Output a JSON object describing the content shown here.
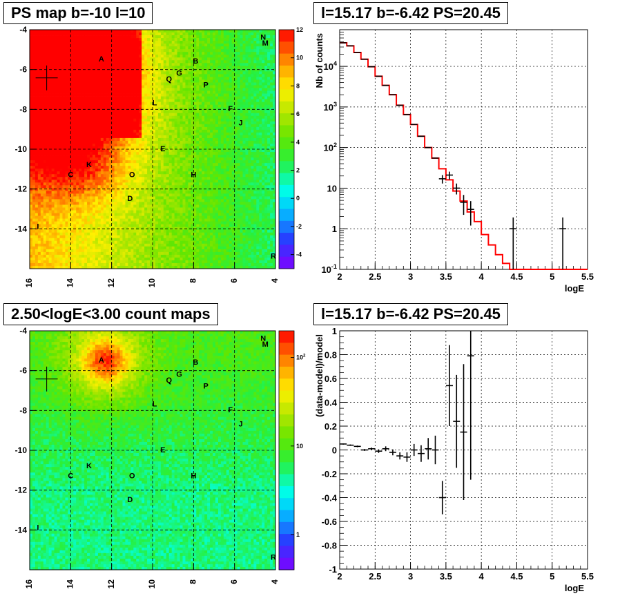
{
  "panels": {
    "tl_title": "PS map b=-10 l=10",
    "tr_title": "l=15.17 b=-6.42 PS=20.45",
    "bl_title": "2.50<logE<3.00 count maps",
    "br_title": "l=15.17 b=-6.42 PS=20.45"
  },
  "chart_data": [
    {
      "type": "heatmap",
      "title": "PS map b=-10 l=10",
      "x_ticks": [
        "16",
        "14",
        "12",
        "10",
        "8",
        "6",
        "4"
      ],
      "y_ticks": [
        "-4",
        "-6",
        "-8",
        "-10",
        "-12",
        "-14"
      ],
      "xlim": [
        16,
        4
      ],
      "ylim": [
        -16,
        -4
      ],
      "colorbar_ticks": [
        "12",
        "10",
        "8",
        "6",
        "4",
        "2",
        "0",
        "-2",
        "-4"
      ],
      "colorbar_range": [
        -5,
        12
      ],
      "sources": [
        {
          "label": "A",
          "l": 12.5,
          "b": -5.6
        },
        {
          "label": "B",
          "l": 7.9,
          "b": -5.7
        },
        {
          "label": "G",
          "l": 8.7,
          "b": -6.3
        },
        {
          "label": "Q",
          "l": 9.2,
          "b": -6.6
        },
        {
          "label": "P",
          "l": 7.4,
          "b": -6.9
        },
        {
          "label": "N",
          "l": 4.6,
          "b": -4.5
        },
        {
          "label": "M",
          "l": 4.5,
          "b": -4.8
        },
        {
          "label": "L",
          "l": 9.9,
          "b": -7.8
        },
        {
          "label": "F",
          "l": 6.2,
          "b": -8.1
        },
        {
          "label": "J",
          "l": 5.7,
          "b": -8.8
        },
        {
          "label": "E",
          "l": 9.5,
          "b": -10.1
        },
        {
          "label": "K",
          "l": 13.1,
          "b": -10.9
        },
        {
          "label": "C",
          "l": 14.0,
          "b": -11.4
        },
        {
          "label": "O",
          "l": 11.0,
          "b": -11.4
        },
        {
          "label": "H",
          "l": 8.0,
          "b": -11.4
        },
        {
          "label": "D",
          "l": 11.1,
          "b": -12.6
        },
        {
          "label": "I",
          "l": 15.6,
          "b": -14.0
        },
        {
          "label": "R",
          "l": 4.1,
          "b": -15.5
        }
      ],
      "crosshair": {
        "l": 15.17,
        "b": -6.42
      }
    },
    {
      "type": "line",
      "title": "l=15.17 b=-6.42 PS=20.45",
      "xlabel": "logE",
      "ylabel": "Nb of counts",
      "yscale": "log",
      "xlim": [
        2,
        5.5
      ],
      "ylim": [
        0.1,
        80000
      ],
      "x_ticks": [
        "2",
        "2.5",
        "3",
        "3.5",
        "4",
        "4.5",
        "5",
        "5.5"
      ],
      "y_ticks": [
        "10^{-1}",
        "1",
        "10",
        "10^{2}",
        "10^{3}",
        "10^{4}"
      ],
      "grid": true,
      "series": [
        {
          "style": "step",
          "color": "#ff0000",
          "bin_edges": [
            2.0,
            2.1,
            2.2,
            2.3,
            2.4,
            2.5,
            2.6,
            2.7,
            2.8,
            2.9,
            3.0,
            3.1,
            3.2,
            3.3,
            3.4,
            3.5,
            3.6,
            3.7,
            3.8,
            3.9,
            4.0,
            4.1,
            4.2,
            4.3,
            4.4,
            4.5,
            5.5
          ],
          "values": [
            38000,
            32000,
            22000,
            15000,
            9800,
            5700,
            3400,
            2000,
            1100,
            650,
            370,
            190,
            100,
            55,
            30,
            16,
            8.5,
            4.8,
            2.6,
            1.5,
            0.72,
            0.4,
            0.23,
            0.14,
            0.1,
            0.1
          ]
        },
        {
          "style": "points",
          "color": "#000000",
          "x": [
            2.05,
            2.15,
            2.25,
            2.35,
            2.45,
            2.55,
            2.65,
            2.75,
            2.85,
            2.95,
            3.05,
            3.15,
            3.25,
            3.35,
            3.45,
            3.55,
            3.65,
            3.75,
            3.85,
            4.45,
            5.15
          ],
          "y": [
            38000,
            32000,
            22000,
            15000,
            9800,
            5700,
            3400,
            2000,
            1100,
            650,
            370,
            190,
            100,
            55,
            17,
            21,
            10,
            4.5,
            3,
            1,
            1
          ],
          "y_err": [
            0,
            0,
            0,
            0,
            0,
            0,
            0,
            0,
            0,
            0,
            0,
            0,
            0,
            0,
            4,
            4.5,
            3,
            2.3,
            1.8,
            0.9,
            0.9
          ]
        }
      ]
    },
    {
      "type": "heatmap",
      "title": "2.50<logE<3.00 count maps",
      "x_ticks": [
        "16",
        "14",
        "12",
        "10",
        "8",
        "6",
        "4"
      ],
      "y_ticks": [
        "-4",
        "-6",
        "-8",
        "-10",
        "-12",
        "-14"
      ],
      "xlim": [
        16,
        4
      ],
      "ylim": [
        -16,
        -4
      ],
      "colorbar_scale": "log",
      "colorbar_ticks": [
        "10^{2}",
        "10",
        "1"
      ],
      "colorbar_range": [
        0.4,
        200
      ],
      "crosshair": {
        "l": 15.17,
        "b": -6.42
      }
    },
    {
      "type": "scatter",
      "title": "l=15.17 b=-6.42 PS=20.45",
      "xlabel": "logE",
      "ylabel": "(data-model)/model",
      "xlim": [
        2,
        5.5
      ],
      "ylim": [
        -1,
        1
      ],
      "x_ticks": [
        "2",
        "2.5",
        "3",
        "3.5",
        "4",
        "4.5",
        "5",
        "5.5"
      ],
      "y_ticks": [
        "-1",
        "-0.8",
        "-0.6",
        "-0.4",
        "-0.2",
        "0",
        "0.2",
        "0.4",
        "0.6",
        "0.8",
        "1"
      ],
      "grid": true,
      "x": [
        2.05,
        2.15,
        2.25,
        2.35,
        2.45,
        2.55,
        2.65,
        2.75,
        2.85,
        2.95,
        3.05,
        3.15,
        3.25,
        3.35,
        3.45,
        3.55,
        3.65,
        3.75,
        3.85
      ],
      "y": [
        0.05,
        0.04,
        0.03,
        0.0,
        0.01,
        -0.01,
        0.01,
        -0.02,
        -0.05,
        -0.06,
        0.0,
        -0.03,
        0.01,
        0.0,
        -0.4,
        0.54,
        0.24,
        0.15,
        0.79
      ],
      "y_err": [
        0.005,
        0.006,
        0.007,
        0.008,
        0.01,
        0.015,
        0.02,
        0.025,
        0.03,
        0.04,
        0.05,
        0.07,
        0.09,
        0.12,
        0.14,
        0.34,
        0.39,
        0.57,
        1.04
      ]
    }
  ]
}
